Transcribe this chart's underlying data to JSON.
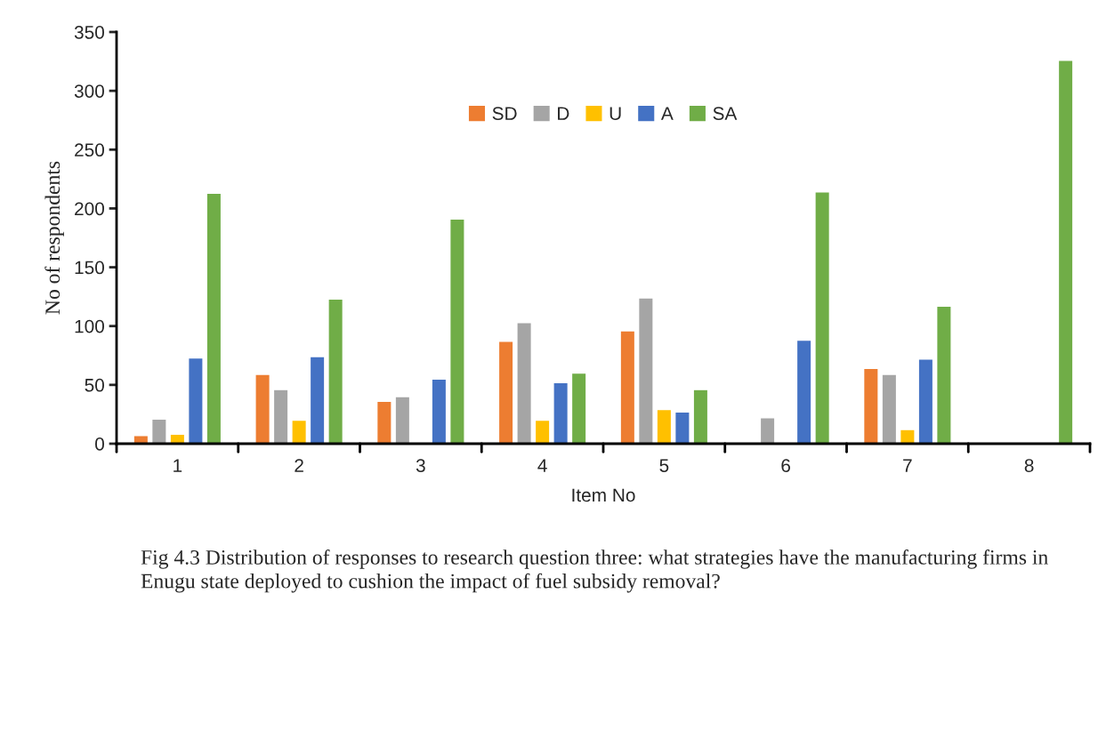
{
  "chart_data": {
    "type": "bar",
    "categories": [
      "1",
      "2",
      "3",
      "4",
      "5",
      "6",
      "7",
      "8"
    ],
    "xlabel": "Item No",
    "ylabel": "No of respondents",
    "ylim": [
      0,
      350
    ],
    "yticks": [
      0,
      50,
      100,
      150,
      200,
      250,
      300,
      350
    ],
    "grid": false,
    "legend": "top",
    "series": [
      {
        "name": "SD",
        "color": "#ed7d31",
        "values": [
          7,
          59,
          36,
          87,
          96,
          null,
          64,
          null
        ]
      },
      {
        "name": "D",
        "color": "#a5a5a5",
        "values": [
          21,
          46,
          40,
          103,
          124,
          22,
          59,
          null
        ]
      },
      {
        "name": "U",
        "color": "#ffc000",
        "values": [
          8,
          20,
          null,
          20,
          29,
          null,
          12,
          null
        ]
      },
      {
        "name": "A",
        "color": "#4472c4",
        "values": [
          73,
          74,
          55,
          52,
          27,
          88,
          72,
          null
        ]
      },
      {
        "name": "SA",
        "color": "#70ad47",
        "values": [
          213,
          123,
          191,
          60,
          46,
          214,
          117,
          326
        ]
      }
    ],
    "annotations": [
      "Fig 4.3 Distribution of responses to research question three: what strategies have the manufacturing firms in Enugu state deployed to cushion the impact of fuel subsidy removal?"
    ]
  }
}
